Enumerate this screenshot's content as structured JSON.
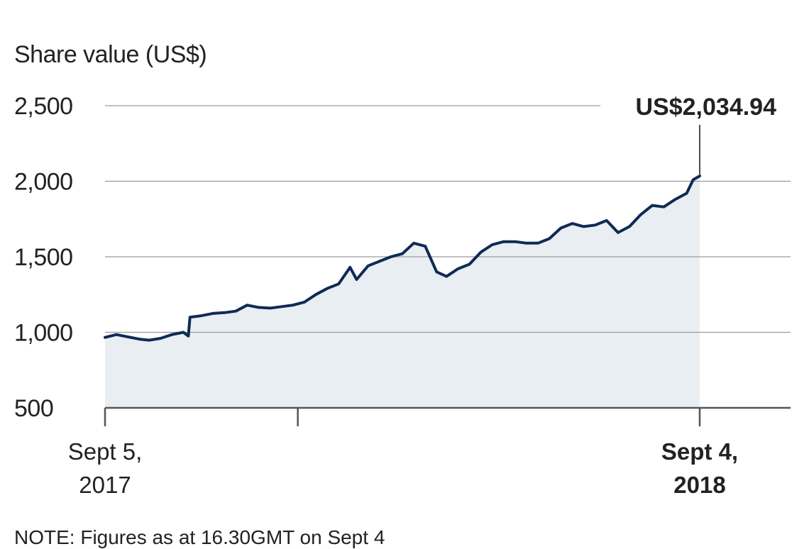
{
  "chart_data": {
    "type": "area",
    "title": "",
    "ylabel": "Share value (US$)",
    "xlabel": "",
    "ylim": [
      500,
      2500
    ],
    "yticks": [
      500,
      1000,
      1500,
      2000,
      2500
    ],
    "ytick_labels": [
      "500",
      "1,000",
      "1,500",
      "2,000",
      "2,500"
    ],
    "x_range": [
      "2017-09-05",
      "2018-09-04"
    ],
    "xtick_labels": [
      {
        "line1": "Sept 5,",
        "line2": "2017",
        "bold": false,
        "date": "2017-09-05"
      },
      {
        "line1": "",
        "line2": "",
        "bold": false,
        "date": "2018-01-01"
      },
      {
        "line1": "Sept 4,",
        "line2": "2018",
        "bold": true,
        "date": "2018-09-04"
      }
    ],
    "grid": true,
    "legend": "none",
    "annotation": {
      "text": "US$2,034.94",
      "date": "2018-09-04",
      "value": 2034.94
    },
    "note": "NOTE: Figures as at 16.30GMT on Sept 4",
    "colors": {
      "line": "#0f2a55",
      "fill": "#e9eef2",
      "grid": "#9a9a9a",
      "text": "#222222"
    },
    "series": [
      {
        "name": "",
        "points": [
          [
            "2017-09-05",
            966
          ],
          [
            "2017-09-12",
            985
          ],
          [
            "2017-09-19",
            970
          ],
          [
            "2017-09-26",
            955
          ],
          [
            "2017-10-02",
            948
          ],
          [
            "2017-10-09",
            960
          ],
          [
            "2017-10-16",
            985
          ],
          [
            "2017-10-23",
            1000
          ],
          [
            "2017-10-26",
            975
          ],
          [
            "2017-10-27",
            1100
          ],
          [
            "2017-11-03",
            1110
          ],
          [
            "2017-11-10",
            1125
          ],
          [
            "2017-11-17",
            1130
          ],
          [
            "2017-11-24",
            1140
          ],
          [
            "2017-12-01",
            1180
          ],
          [
            "2017-12-08",
            1165
          ],
          [
            "2017-12-15",
            1160
          ],
          [
            "2017-12-22",
            1170
          ],
          [
            "2017-12-29",
            1180
          ],
          [
            "2018-01-05",
            1200
          ],
          [
            "2018-01-12",
            1250
          ],
          [
            "2018-01-19",
            1290
          ],
          [
            "2018-01-26",
            1320
          ],
          [
            "2018-02-02",
            1430
          ],
          [
            "2018-02-06",
            1350
          ],
          [
            "2018-02-13",
            1440
          ],
          [
            "2018-02-20",
            1470
          ],
          [
            "2018-02-27",
            1500
          ],
          [
            "2018-03-06",
            1520
          ],
          [
            "2018-03-13",
            1590
          ],
          [
            "2018-03-20",
            1570
          ],
          [
            "2018-03-27",
            1400
          ],
          [
            "2018-04-02",
            1370
          ],
          [
            "2018-04-09",
            1420
          ],
          [
            "2018-04-16",
            1450
          ],
          [
            "2018-04-23",
            1530
          ],
          [
            "2018-04-30",
            1580
          ],
          [
            "2018-05-07",
            1600
          ],
          [
            "2018-05-14",
            1600
          ],
          [
            "2018-05-21",
            1590
          ],
          [
            "2018-05-28",
            1590
          ],
          [
            "2018-06-04",
            1620
          ],
          [
            "2018-06-11",
            1690
          ],
          [
            "2018-06-18",
            1720
          ],
          [
            "2018-06-25",
            1700
          ],
          [
            "2018-07-02",
            1710
          ],
          [
            "2018-07-09",
            1740
          ],
          [
            "2018-07-16",
            1660
          ],
          [
            "2018-07-23",
            1700
          ],
          [
            "2018-07-30",
            1780
          ],
          [
            "2018-08-06",
            1840
          ],
          [
            "2018-08-13",
            1830
          ],
          [
            "2018-08-20",
            1880
          ],
          [
            "2018-08-27",
            1920
          ],
          [
            "2018-08-31",
            2010
          ],
          [
            "2018-09-04",
            2034.94
          ]
        ]
      }
    ]
  }
}
